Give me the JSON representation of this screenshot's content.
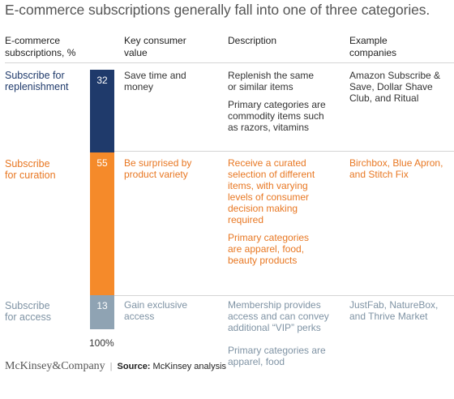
{
  "title": "E-commerce subscriptions generally fall into one of three categories.",
  "headers": {
    "col1": [
      "E-commerce",
      "subscriptions, %"
    ],
    "col2": [
      "Key consumer",
      "value"
    ],
    "col3": [
      "Description"
    ],
    "col4": [
      "Example",
      "companies"
    ]
  },
  "rows": [
    {
      "label": [
        "Subscribe for",
        "replenishment"
      ],
      "value": "32",
      "key_value": [
        "Save time and",
        "money"
      ],
      "description": [
        [
          "Replenish the same",
          "or similar items"
        ],
        [
          "Primary categories are",
          "commodity items such",
          "as razors, vitamins"
        ]
      ],
      "examples": [
        "Amazon Subscribe &",
        "Save, Dollar Shave",
        "Club, and Ritual"
      ]
    },
    {
      "label": [
        "Subscribe",
        "for curation"
      ],
      "value": "55",
      "key_value": [
        "Be surprised by",
        "product variety"
      ],
      "description": [
        [
          "Receive a curated",
          "selection of different",
          "items, with varying",
          "levels of consumer",
          "decision making",
          "required"
        ],
        [
          "Primary categories",
          "are apparel, food,",
          "beauty products"
        ]
      ],
      "examples": [
        "Birchbox, Blue Apron,",
        "and Stitch Fix"
      ]
    },
    {
      "label": [
        "Subscribe",
        "for access"
      ],
      "value": "13",
      "key_value": [
        "Gain exclusive",
        "access"
      ],
      "description": [
        [
          "Membership provides",
          "access and can convey",
          "additional “VIP” perks"
        ],
        [
          "Primary categories are",
          "apparel, food"
        ]
      ],
      "examples": [
        "JustFab, NatureBox,",
        "and Thrive Market"
      ]
    }
  ],
  "total_label": "100%",
  "footer": {
    "logo": "McKinsey&Company",
    "separator": "|",
    "source_label": "Source:",
    "source_text": "McKinsey analysis"
  },
  "chart_data": {
    "type": "bar",
    "stacked": true,
    "categories": [
      "Subscribe for replenishment",
      "Subscribe for curation",
      "Subscribe for access"
    ],
    "values": [
      32,
      55,
      13
    ],
    "total": 100,
    "unit": "%",
    "colors": [
      "#1f3a6b",
      "#f58a2a",
      "#8fa3b3"
    ]
  }
}
